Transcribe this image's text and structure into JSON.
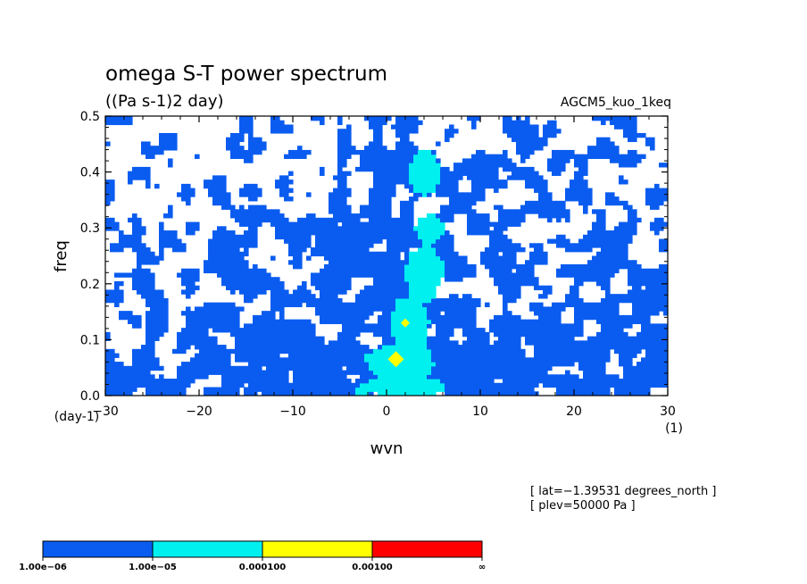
{
  "chart_data": {
    "type": "heatmap",
    "title": "omega S-T power spectrum",
    "subtitle": "((Pa s-1)2 day)",
    "source_label": "AGCM5_kuo_1keq",
    "xlabel": "wvn",
    "x_unit": "(1)",
    "ylabel": "freq",
    "y_unit": "(day-1)",
    "xlim": [
      -30,
      30
    ],
    "ylim": [
      0,
      0.5
    ],
    "x_ticks": [
      -30,
      -20,
      -10,
      0,
      10,
      20,
      30
    ],
    "x_tick_labels": [
      "−30",
      "−20",
      "−10",
      "0",
      "10",
      "20",
      "30"
    ],
    "y_ticks": [
      0,
      0.1,
      0.2,
      0.3,
      0.4,
      0.5
    ],
    "y_tick_labels": [
      "0.0",
      "0.1",
      "0.2",
      "0.3",
      "0.4",
      "0.5"
    ],
    "info_lines": [
      "[ lat=−1.39531 degrees_north ]",
      "[ plev=50000 Pa ]"
    ],
    "levels": [
      "1.00e−06",
      "1.00e−05",
      "0.000100",
      "0.00100",
      "∞"
    ],
    "level_colors": [
      "#0a5cf0",
      "#00f0f0",
      "#ffff00",
      "#ff0000"
    ],
    "dominant_wavenumber": 2,
    "peak_points": [
      {
        "x": 1,
        "y": 0.065,
        "level": 2
      },
      {
        "x": 2,
        "y": 0.13,
        "level": 2
      }
    ],
    "cyan_regions": [
      {
        "x": 4.5,
        "y": 0.3,
        "wx": 1.5,
        "wy": 0.03
      },
      {
        "x": 4,
        "y": 0.22,
        "wx": 2,
        "wy": 0.05
      },
      {
        "x": 2.5,
        "y": 0.13,
        "wx": 2,
        "wy": 0.05
      },
      {
        "x": 1.5,
        "y": 0.06,
        "wx": 3.5,
        "wy": 0.035
      },
      {
        "x": 2,
        "y": 0.015,
        "wx": 5,
        "wy": 0.018
      },
      {
        "x": 4,
        "y": 0.4,
        "wx": 1.5,
        "wy": 0.04
      }
    ]
  }
}
